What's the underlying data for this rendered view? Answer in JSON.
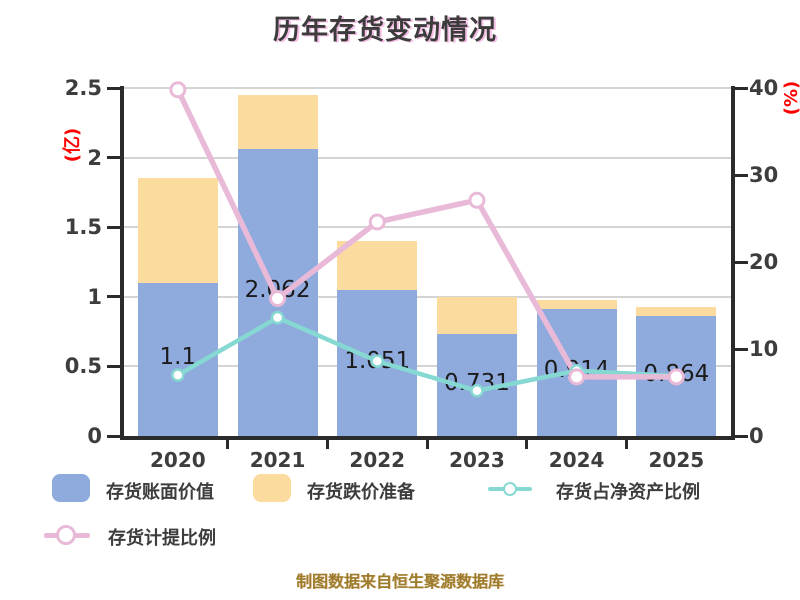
{
  "title": "历年存货变动情况",
  "footer": "制图数据来自恒生聚源数据库",
  "left_axis": {
    "label": "(亿)",
    "label_color": "#ff0000",
    "ticks": [
      "0",
      "0.5",
      "1",
      "1.5",
      "2",
      "2.5"
    ]
  },
  "right_axis": {
    "label": "(%)",
    "label_color": "#ff0000",
    "ticks": [
      "0",
      "10",
      "20",
      "30",
      "40"
    ]
  },
  "chart_data": {
    "type": "combo",
    "categories": [
      "2020",
      "2021",
      "2022",
      "2023",
      "2024",
      "2025"
    ],
    "series": [
      {
        "name": "存货账面价值",
        "type": "bar",
        "stack": "inventory",
        "axis": "left",
        "color": "#8faadc",
        "values": [
          1.1,
          2.062,
          1.051,
          0.731,
          0.914,
          0.864
        ],
        "labels": [
          "1.1",
          "2.062",
          "1.051",
          "0.731",
          "0.914",
          "0.864"
        ]
      },
      {
        "name": "存货跌价准备",
        "type": "bar",
        "stack": "inventory",
        "axis": "left",
        "color": "#fcdc9e",
        "values": [
          0.75,
          0.39,
          0.35,
          0.27,
          0.06,
          0.06
        ]
      },
      {
        "name": "存货占净资产比例",
        "type": "line",
        "axis": "right",
        "color": "#85d9d2",
        "marker": "open-circle",
        "values": [
          7.0,
          13.6,
          8.6,
          5.2,
          7.5,
          6.9
        ]
      },
      {
        "name": "存货计提比例",
        "type": "line",
        "axis": "right",
        "color": "#e9bad8",
        "marker": "open-circle",
        "values": [
          39.8,
          15.8,
          24.6,
          27.1,
          6.8,
          6.8
        ]
      }
    ],
    "left_ylim": [
      0,
      2.5
    ],
    "right_ylim": [
      0,
      40
    ],
    "grid": true,
    "legend_position": "bottom"
  }
}
